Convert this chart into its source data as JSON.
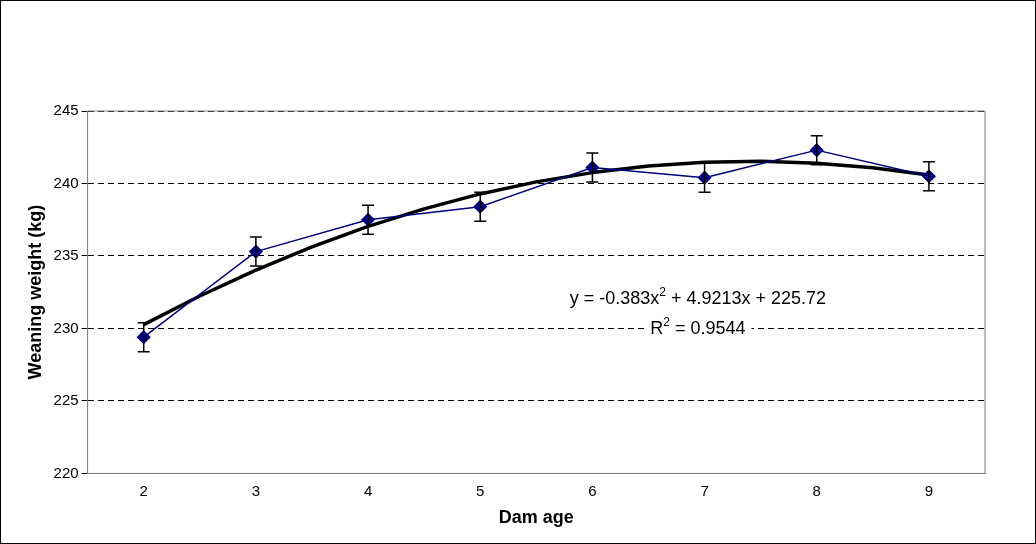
{
  "chart_data": {
    "type": "line",
    "xlabel": "Dam age",
    "ylabel": "Weaning weight (kg)",
    "x": [
      2,
      3,
      4,
      5,
      6,
      7,
      8,
      9
    ],
    "xlim": [
      1.5,
      9.5
    ],
    "xticks": [
      2,
      3,
      4,
      5,
      6,
      7,
      8,
      9
    ],
    "ylim": [
      220,
      245
    ],
    "yticks": [
      220,
      225,
      230,
      235,
      240,
      245
    ],
    "grid": "y",
    "legend": false,
    "series": [
      {
        "color": "#000080",
        "marker": "diamond",
        "line_style": "solid",
        "values": [
          229.4,
          235.3,
          237.5,
          238.4,
          241.1,
          240.4,
          242.3,
          240.5
        ],
        "errors": [
          1,
          1,
          1,
          1,
          1,
          1,
          1,
          1
        ]
      },
      {
        "color": "#000000",
        "marker": "none",
        "line_style": "solid",
        "x": [
          2,
          2.5,
          3,
          3.5,
          4,
          4.5,
          5,
          5.5,
          6,
          6.5,
          7,
          7.5,
          8,
          8.5,
          9
        ],
        "values": [
          230.26,
          232.24,
          234.03,
          235.63,
          237.04,
          238.25,
          239.28,
          240.11,
          240.75,
          241.2,
          241.46,
          241.53,
          241.4,
          241.09,
          240.58
        ]
      }
    ],
    "annotations": [
      "y = -0.383x$^{2}$ + 4.9213x + 225.72",
      "R$^{2}$ = 0.9544"
    ]
  }
}
